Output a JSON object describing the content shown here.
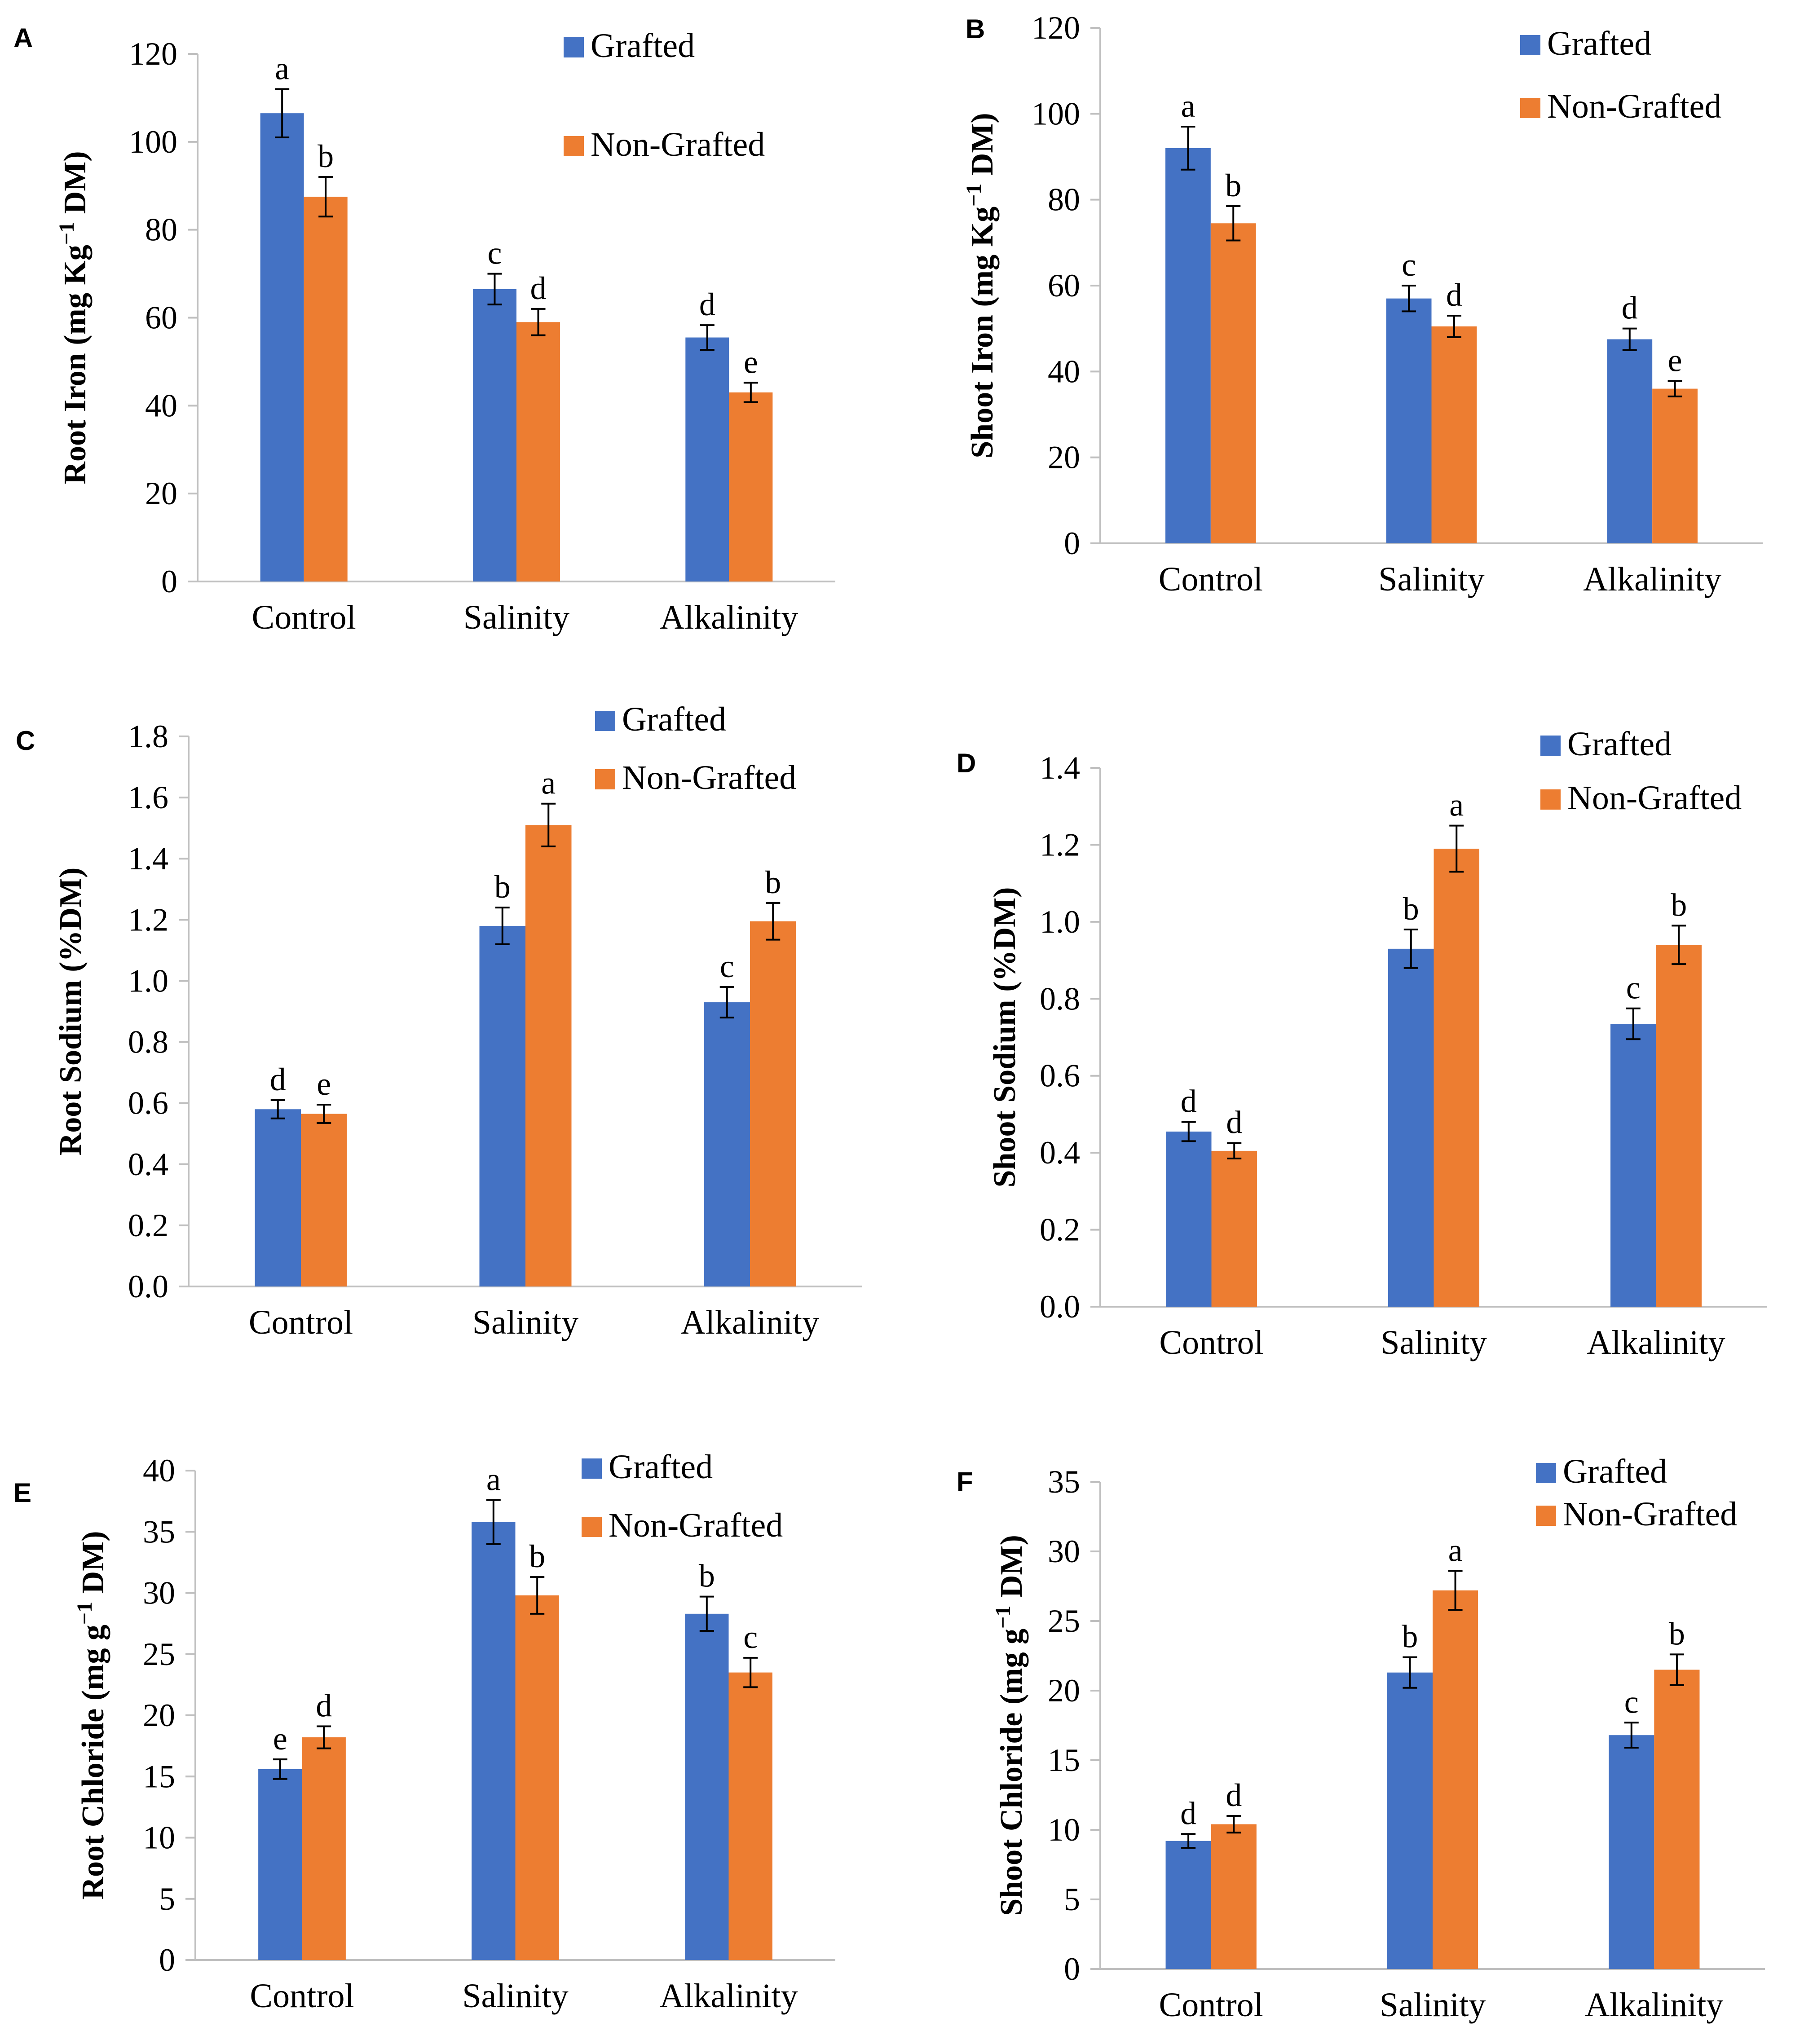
{
  "colors": {
    "grafted": "#4472c4",
    "non_grafted": "#ed7d31",
    "axis": "#bfbfbf",
    "text": "#000000"
  },
  "chart_data": [
    {
      "panel": "A",
      "type": "bar",
      "ylabel": "Root Iron (mg Kg",
      "ylabel_sup": "−1",
      "ylabel_tail": " DM)",
      "categories": [
        "Control",
        "Salinity",
        "Alkalinity"
      ],
      "ylim": [
        0,
        120
      ],
      "ytick_step": 20,
      "ytick_decimals": 0,
      "legend": [
        "Grafted",
        "Non-Grafted"
      ],
      "series": [
        {
          "name": "Grafted",
          "values": [
            106.5,
            66.5,
            55.5
          ],
          "errors": [
            5.5,
            3.5,
            2.8
          ],
          "letters": [
            "a",
            "c",
            "d"
          ]
        },
        {
          "name": "Non-Grafted",
          "values": [
            87.5,
            59,
            43
          ],
          "errors": [
            4.5,
            3,
            2.2
          ],
          "letters": [
            "b",
            "d",
            "e"
          ]
        }
      ]
    },
    {
      "panel": "B",
      "type": "bar",
      "ylabel": "Shoot Iron (mg Kg",
      "ylabel_sup": "−1",
      "ylabel_tail": " DM)",
      "categories": [
        "Control",
        "Salinity",
        "Alkalinity"
      ],
      "ylim": [
        0,
        120
      ],
      "ytick_step": 20,
      "ytick_decimals": 0,
      "legend": [
        "Grafted",
        "Non-Grafted"
      ],
      "series": [
        {
          "name": "Grafted",
          "values": [
            92,
            57,
            47.5
          ],
          "errors": [
            5,
            3,
            2.5
          ],
          "letters": [
            "a",
            "c",
            "d"
          ]
        },
        {
          "name": "Non-Grafted",
          "values": [
            74.5,
            50.5,
            36
          ],
          "errors": [
            4,
            2.5,
            1.8
          ],
          "letters": [
            "b",
            "d",
            "e"
          ]
        }
      ]
    },
    {
      "panel": "C",
      "type": "bar",
      "ylabel": "Root Sodium (%DM)",
      "ylabel_sup": "",
      "ylabel_tail": "",
      "categories": [
        "Control",
        "Salinity",
        "Alkalinity"
      ],
      "ylim": [
        0,
        1.8
      ],
      "ytick_step": 0.2,
      "ytick_decimals": 1,
      "legend": [
        "Grafted",
        "Non-Grafted"
      ],
      "series": [
        {
          "name": "Grafted",
          "values": [
            0.58,
            1.18,
            0.93
          ],
          "errors": [
            0.03,
            0.06,
            0.05
          ],
          "letters": [
            "d",
            "b",
            "c"
          ]
        },
        {
          "name": "Non-Grafted",
          "values": [
            0.565,
            1.51,
            1.195
          ],
          "errors": [
            0.03,
            0.07,
            0.06
          ],
          "letters": [
            "e",
            "a",
            "b"
          ]
        }
      ]
    },
    {
      "panel": "D",
      "type": "bar",
      "ylabel": "Shoot Sodium (%DM)",
      "ylabel_sup": "",
      "ylabel_tail": "",
      "categories": [
        "Control",
        "Salinity",
        "Alkalinity"
      ],
      "ylim": [
        0,
        1.4
      ],
      "ytick_step": 0.2,
      "ytick_decimals": 1,
      "legend": [
        "Grafted",
        "Non-Grafted"
      ],
      "series": [
        {
          "name": "Grafted",
          "values": [
            0.455,
            0.93,
            0.735
          ],
          "errors": [
            0.025,
            0.05,
            0.04
          ],
          "letters": [
            "d",
            "b",
            "c"
          ]
        },
        {
          "name": "Non-Grafted",
          "values": [
            0.405,
            1.19,
            0.94
          ],
          "errors": [
            0.02,
            0.06,
            0.05
          ],
          "letters": [
            "d",
            "a",
            "b"
          ]
        }
      ]
    },
    {
      "panel": "E",
      "type": "bar",
      "ylabel": "Root Chloride (mg g",
      "ylabel_sup": "−1",
      "ylabel_tail": " DM)",
      "categories": [
        "Control",
        "Salinity",
        "Alkalinity"
      ],
      "ylim": [
        0,
        40
      ],
      "ytick_step": 5,
      "ytick_decimals": 0,
      "legend": [
        "Grafted",
        "Non-Grafted"
      ],
      "series": [
        {
          "name": "Grafted",
          "values": [
            15.6,
            35.8,
            28.3
          ],
          "errors": [
            0.8,
            1.8,
            1.4
          ],
          "letters": [
            "e",
            "a",
            "b"
          ]
        },
        {
          "name": "Non-Grafted",
          "values": [
            18.2,
            29.8,
            23.5
          ],
          "errors": [
            0.9,
            1.5,
            1.2
          ],
          "letters": [
            "d",
            "b",
            "c"
          ]
        }
      ]
    },
    {
      "panel": "F",
      "type": "bar",
      "ylabel": "Shoot Chloride (mg g",
      "ylabel_sup": "−1",
      "ylabel_tail": " DM)",
      "categories": [
        "Control",
        "Salinity",
        "Alkalinity"
      ],
      "ylim": [
        0,
        35
      ],
      "ytick_step": 5,
      "ytick_decimals": 0,
      "legend": [
        "Grafted",
        "Non-Grafted"
      ],
      "series": [
        {
          "name": "Grafted",
          "values": [
            9.2,
            21.3,
            16.8
          ],
          "errors": [
            0.5,
            1.1,
            0.9
          ],
          "letters": [
            "d",
            "b",
            "c"
          ]
        },
        {
          "name": "Non-Grafted",
          "values": [
            10.4,
            27.2,
            21.5
          ],
          "errors": [
            0.6,
            1.4,
            1.1
          ],
          "letters": [
            "d",
            "a",
            "b"
          ]
        }
      ]
    }
  ]
}
